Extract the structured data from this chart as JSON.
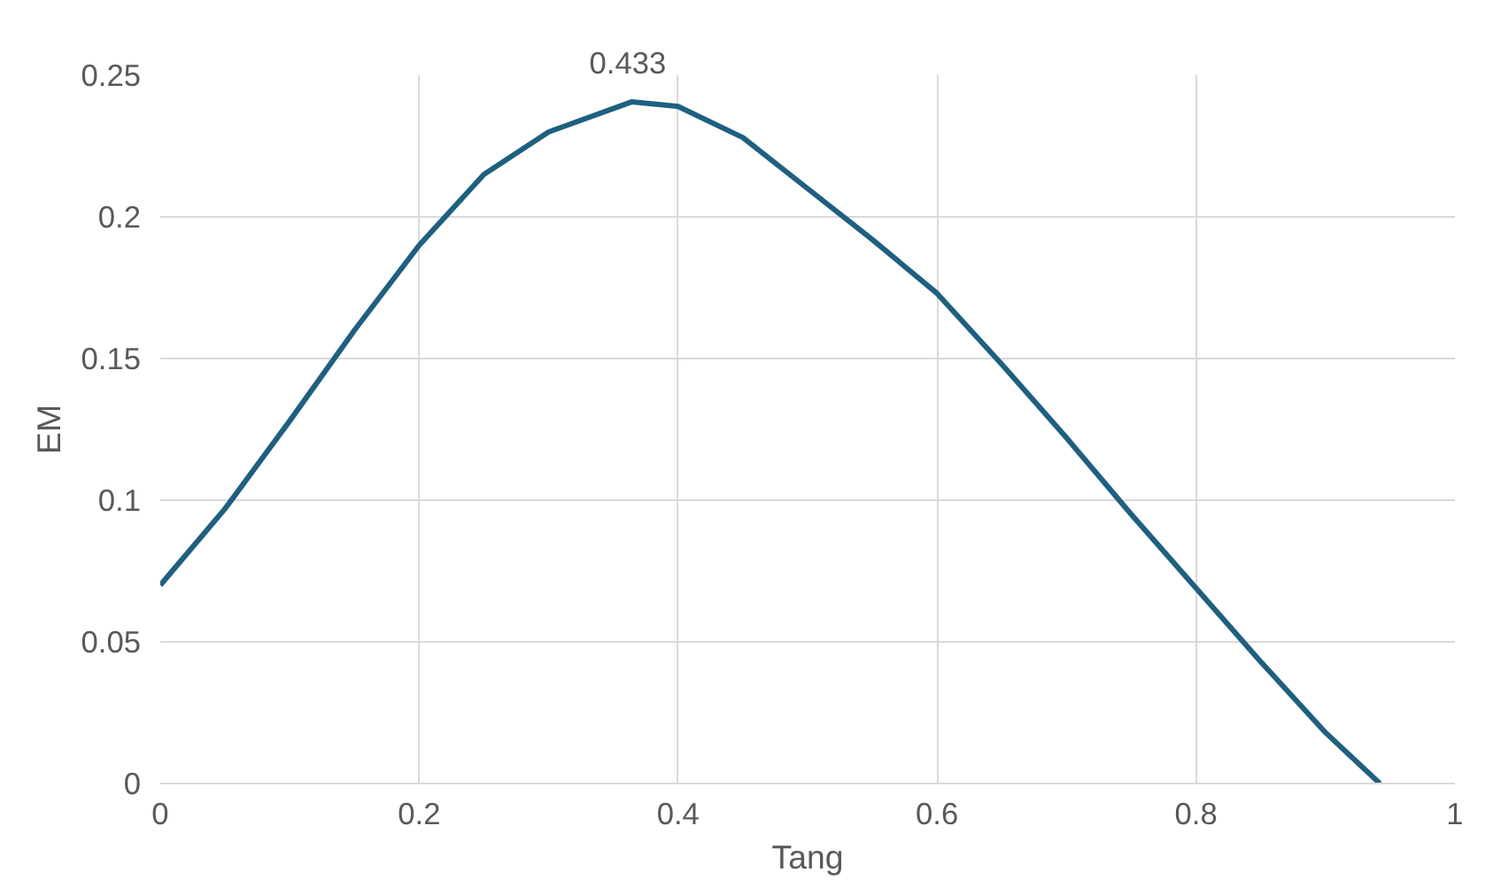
{
  "chart_data": {
    "type": "line",
    "xlabel": "Tang",
    "ylabel": "EM",
    "x": [
      0,
      0.05,
      0.1,
      0.15,
      0.2,
      0.25,
      0.3,
      0.364,
      0.4,
      0.45,
      0.5,
      0.55,
      0.6,
      0.65,
      0.7,
      0.75,
      0.8,
      0.85,
      0.9,
      0.942
    ],
    "series": [
      {
        "color": "#1f5f80",
        "values": [
          0.07,
          0.097,
          0.128,
          0.16,
          0.19,
          0.215,
          0.23,
          0.2406,
          0.239,
          0.228,
          0.21,
          0.192,
          0.173,
          0.148,
          0.122,
          0.095,
          0.069,
          0.043,
          0.018,
          0
        ]
      }
    ],
    "xlim": [
      0,
      1
    ],
    "xticks": [
      0,
      0.2,
      0.4,
      0.6,
      0.8,
      1
    ],
    "ylim": [
      0,
      0.25
    ],
    "yticks": [
      0,
      0.05,
      0.1,
      0.15,
      0.2,
      0.25
    ],
    "grid": true,
    "marker": "none",
    "line_style": "solid",
    "annotations": [
      {
        "text": "0.433",
        "x": 0.364,
        "y": 0.2406
      }
    ]
  }
}
